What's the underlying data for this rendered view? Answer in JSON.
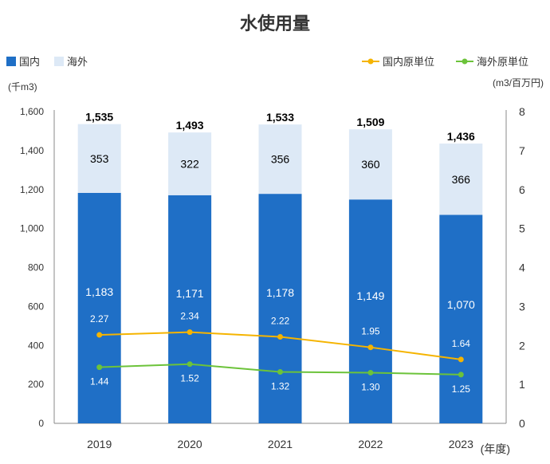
{
  "chart_data": {
    "type": "bar",
    "title": "水使用量",
    "categories": [
      "2019",
      "2020",
      "2021",
      "2022",
      "2023"
    ],
    "xlabel": "(年度)",
    "left_axis": {
      "unit": "(千m3)",
      "ylim": [
        0,
        1600
      ],
      "ticks": [
        "0",
        "200",
        "400",
        "600",
        "800",
        "1,000",
        "1,200",
        "1,400",
        "1,600"
      ]
    },
    "right_axis": {
      "unit": "(m3/百万円)",
      "ylim": [
        0,
        8
      ],
      "ticks": [
        "0",
        "1",
        "2",
        "3",
        "4",
        "5",
        "6",
        "7",
        "8"
      ]
    },
    "series": [
      {
        "name": "国内",
        "type": "bar",
        "axis": "left",
        "color": "#1f6fc6",
        "values": [
          1183,
          1171,
          1178,
          1149,
          1070
        ],
        "labels": [
          "1,183",
          "1,171",
          "1,178",
          "1,149",
          "1,070"
        ]
      },
      {
        "name": "海外",
        "type": "bar",
        "axis": "left",
        "color": "#dde9f6",
        "values": [
          353,
          322,
          356,
          360,
          366
        ],
        "labels": [
          "353",
          "322",
          "356",
          "360",
          "366"
        ]
      },
      {
        "name": "国内原単位",
        "type": "line",
        "axis": "right",
        "color": "#f5b400",
        "values": [
          2.27,
          2.34,
          2.22,
          1.95,
          1.64
        ],
        "labels": [
          "2.27",
          "2.34",
          "2.22",
          "1.95",
          "1.64"
        ]
      },
      {
        "name": "海外原単位",
        "type": "line",
        "axis": "right",
        "color": "#6cc33a",
        "values": [
          1.44,
          1.52,
          1.32,
          1.3,
          1.25
        ],
        "labels": [
          "1.44",
          "1.52",
          "1.32",
          "1.30",
          "1.25"
        ]
      }
    ],
    "totals": [
      1535,
      1493,
      1533,
      1509,
      1436
    ],
    "total_labels": [
      "1,535",
      "1,493",
      "1,533",
      "1,509",
      "1,436"
    ],
    "legend_bars": [
      "国内",
      "海外"
    ],
    "legend_lines": [
      "国内原単位",
      "海外原単位"
    ],
    "grid": false
  }
}
